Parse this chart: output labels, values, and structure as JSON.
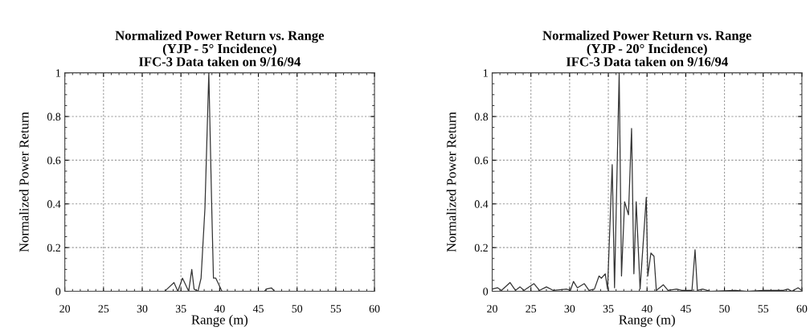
{
  "chart_data": [
    {
      "type": "line",
      "title": "Normalized Power Return vs. Range\n(YJP - 5° Incidence)\nIFC-3 Data taken on 9/16/94",
      "xlabel": "Range (m)",
      "ylabel": "Normalized Power Return",
      "xlim": [
        20,
        60
      ],
      "ylim": [
        0,
        1
      ],
      "xticks": [
        20,
        25,
        30,
        35,
        40,
        45,
        50,
        55,
        60
      ],
      "yticks": [
        0,
        0.2,
        0.4,
        0.6,
        0.8,
        1
      ],
      "grid": true,
      "marker": "none",
      "line_style": "solid",
      "series": [
        {
          "color": "#333333",
          "x": [
            20,
            32.9,
            33.2,
            34.1,
            34.6,
            35.2,
            36.0,
            36.4,
            36.7,
            37.2,
            37.6,
            38.1,
            38.6,
            38.98,
            39.2,
            39.5,
            40.3,
            45.8,
            46.0,
            46.7,
            47.1,
            60
          ],
          "values": [
            0,
            0,
            0.01,
            0.04,
            0,
            0.06,
            0,
            0.1,
            0.01,
            0,
            0.06,
            0.38,
            1.0,
            0.38,
            0.06,
            0.06,
            0,
            0,
            0.01,
            0.015,
            0,
            0
          ]
        }
      ]
    },
    {
      "type": "line",
      "title": "Normalized Power Return vs. Range\n(YJP - 20° Incidence)\nIFC-3 Data taken on 9/16/94",
      "xlabel": "Range (m)",
      "ylabel": "Normalized Power Return",
      "xlim": [
        20,
        60
      ],
      "ylim": [
        0,
        1
      ],
      "xticks": [
        20,
        25,
        30,
        35,
        40,
        45,
        50,
        55,
        60
      ],
      "yticks": [
        0,
        0.2,
        0.4,
        0.6,
        0.8,
        1
      ],
      "grid": true,
      "marker": "none",
      "line_style": "solid",
      "series": [
        {
          "color": "#333333",
          "x": [
            20.0,
            20.7,
            21.2,
            22.3,
            23.0,
            23.6,
            24.1,
            25.4,
            26.1,
            27.0,
            27.9,
            29.6,
            30.1,
            30.5,
            31.0,
            31.9,
            32.5,
            33.2,
            33.8,
            34.1,
            34.6,
            34.9,
            35.5,
            35.8,
            36.4,
            36.7,
            37.1,
            37.6,
            38.0,
            38.3,
            38.6,
            39.1,
            39.9,
            40.1,
            40.5,
            40.9,
            41.2,
            42.1,
            42.7,
            43.8,
            44.5,
            45.8,
            46.2,
            46.5,
            47.2,
            48.2,
            51.4,
            52.9,
            55.1,
            57.6,
            58.2,
            58.7,
            59.5,
            60.0
          ],
          "values": [
            0.01,
            0.016,
            0.004,
            0.04,
            0.004,
            0.02,
            0.004,
            0.035,
            0.004,
            0.02,
            0.004,
            0.01,
            0.004,
            0.045,
            0.016,
            0.035,
            0.004,
            0.01,
            0.07,
            0.06,
            0.08,
            0.01,
            0.58,
            0.016,
            1.0,
            0.07,
            0.41,
            0.35,
            0.745,
            0.08,
            0.41,
            0.01,
            0.43,
            0.07,
            0.175,
            0.16,
            0.004,
            0.03,
            0.004,
            0.01,
            0.004,
            0.004,
            0.19,
            0.004,
            0.01,
            0,
            0.004,
            0,
            0.004,
            0.004,
            0.01,
            0,
            0.016,
            0.004
          ]
        }
      ]
    }
  ]
}
